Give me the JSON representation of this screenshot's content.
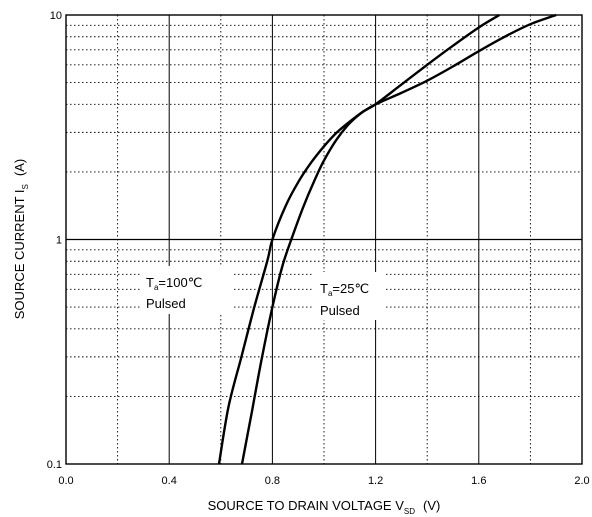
{
  "chart_data": {
    "type": "line",
    "title": "",
    "x_scale": "linear",
    "y_scale": "log",
    "xlim": [
      0.0,
      2.0
    ],
    "ylim": [
      0.1,
      10
    ],
    "grid": true,
    "xticks": [
      "0.0",
      "0.4",
      "0.8",
      "1.2",
      "1.6",
      "2.0"
    ],
    "yticks": [
      "0.1",
      "1",
      "10"
    ],
    "xlabel": {
      "main": "SOURCE TO DRAIN VOLTAGE   V",
      "sub": "SD",
      "unit": "(V)"
    },
    "ylabel": {
      "main": "SOURCE CURRENT   I",
      "sub": "S",
      "unit": "(A)"
    },
    "series": [
      {
        "x": [
          0.593,
          0.63,
          0.68,
          0.73,
          0.78,
          0.8,
          0.85,
          0.9,
          0.95,
          1.0,
          1.05,
          1.1,
          1.15,
          1.2,
          1.3,
          1.4,
          1.5,
          1.6,
          1.7,
          1.8,
          1.9
        ],
        "y": [
          0.1,
          0.18,
          0.3,
          0.5,
          0.8,
          1.0,
          1.4,
          1.8,
          2.2,
          2.6,
          3.0,
          3.35,
          3.7,
          4.0,
          4.5,
          5.1,
          5.9,
          6.9,
          8.0,
          9.1,
          10.0
        ]
      },
      {
        "x": [
          0.682,
          0.72,
          0.76,
          0.8,
          0.84,
          0.88,
          0.92,
          0.96,
          1.0,
          1.05,
          1.1,
          1.15,
          1.2,
          1.3,
          1.4,
          1.5,
          1.6,
          1.68
        ],
        "y": [
          0.1,
          0.17,
          0.3,
          0.5,
          0.77,
          1.05,
          1.4,
          1.8,
          2.25,
          2.8,
          3.3,
          3.7,
          4.0,
          4.9,
          6.0,
          7.3,
          8.8,
          10.0
        ]
      }
    ],
    "annotations": [
      {
        "main": "T",
        "sub": "a",
        "rest": "=100℃",
        "line2": "Pulsed"
      },
      {
        "main": "T",
        "sub": "a",
        "rest": "=25℃",
        "line2": "Pulsed"
      }
    ]
  }
}
